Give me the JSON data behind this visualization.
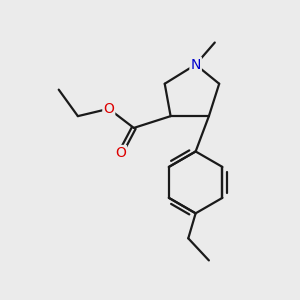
{
  "background_color": "#ebebeb",
  "bond_color": "#1a1a1a",
  "oxygen_color": "#dd0000",
  "nitrogen_color": "#0000cc",
  "line_width": 1.6,
  "font_size_atom": 10,
  "fig_width": 3.0,
  "fig_height": 3.0,
  "dpi": 100,
  "xlim": [
    0,
    10
  ],
  "ylim": [
    0,
    10
  ]
}
